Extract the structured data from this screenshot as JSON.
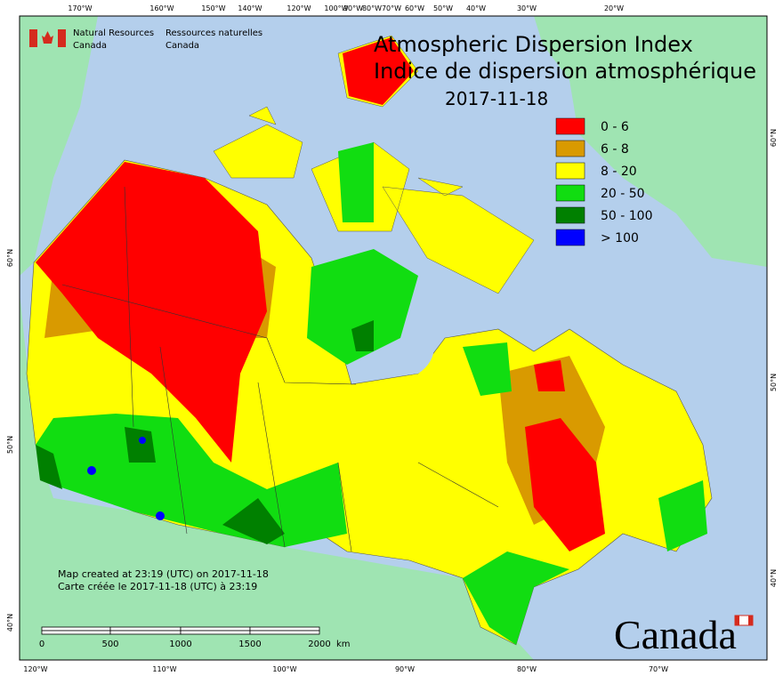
{
  "header": {
    "title": "Atmospheric Dispersion Index",
    "title_fr": "Indice de dispersion atmosphérique",
    "date": "2017-11-18"
  },
  "agency": {
    "en": [
      "Natural Resources",
      "Canada"
    ],
    "fr": [
      "Ressources naturelles",
      "Canada"
    ]
  },
  "legend": [
    {
      "label": "0 - 6",
      "color": "#ff0000"
    },
    {
      "label": "6 - 8",
      "color": "#d99a00"
    },
    {
      "label": "8 - 20",
      "color": "#ffff00"
    },
    {
      "label": "20 - 50",
      "color": "#11dd11"
    },
    {
      "label": "50 - 100",
      "color": "#008000"
    },
    {
      "label": "> 100",
      "color": "#0000ff"
    }
  ],
  "notes": [
    "Map created at 23:19 (UTC) on 2017-11-18",
    "Carte créée le 2017-11-18 (UTC) à 23:19"
  ],
  "scale": {
    "labels": [
      "0",
      "500",
      "1000",
      "1500",
      "2000"
    ],
    "unit": "km"
  },
  "top_longitudes": [
    "170°W",
    "160°W",
    "150°W",
    "140°W",
    "120°W",
    "100°W",
    "90°W",
    "80°W",
    "70°W",
    "60°W",
    "50°W",
    "40°W",
    "30°W",
    "20°W"
  ],
  "bottom_longitudes": [
    "120°W",
    "110°W",
    "100°W",
    "90°W",
    "80°W",
    "70°W"
  ],
  "left_latitudes": [
    "60°N",
    "50°N",
    "40°N"
  ],
  "right_latitudes": [
    "60°N",
    "50°N",
    "40°N"
  ],
  "wordmark": "Canada"
}
